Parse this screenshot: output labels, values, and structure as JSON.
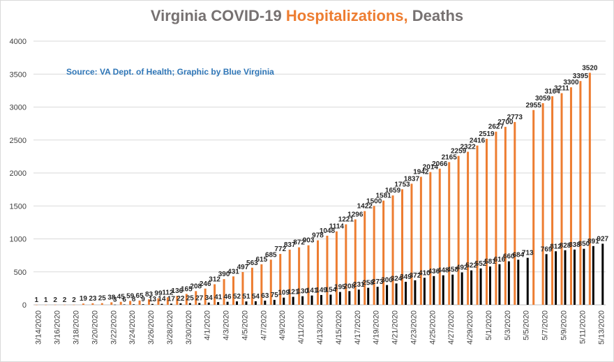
{
  "title": {
    "part1": "Virginia COVID-19 ",
    "part2": "Hospitalizations,",
    "part3": " Deaths"
  },
  "colors": {
    "title_grey": "#767171",
    "hospitalizations": "#ED7D31",
    "deaths": "#000000",
    "source_text": "#2E75B6",
    "grid": "#d9d9d9"
  },
  "chart_data": {
    "type": "bar",
    "title": "Virginia COVID-19 Hospitalizations, Deaths",
    "annotation": "Source: VA Dept. of Health; Graphic by Blue Virginia",
    "ylim": [
      0,
      4000
    ],
    "yticks": [
      0,
      500,
      1000,
      1500,
      2000,
      2500,
      3000,
      3500,
      4000
    ],
    "grid": true,
    "legend": "none",
    "categories": [
      "3/14/2020",
      "3/15/2020",
      "3/16/2020",
      "3/17/2020",
      "3/18/2020",
      "3/19/2020",
      "3/20/2020",
      "3/21/2020",
      "3/22/2020",
      "3/23/2020",
      "3/24/2020",
      "3/25/2020",
      "3/26/2020",
      "3/27/2020",
      "3/28/2020",
      "3/29/2020",
      "3/30/2020",
      "3/31/2020",
      "4/1/2020",
      "4/2/2020",
      "4/3/2020",
      "4/4/2020",
      "4/5/2020",
      "4/6/2020",
      "4/7/2020",
      "4/8/2020",
      "4/9/2020",
      "4/10/2020",
      "4/11/2020",
      "4/12/2020",
      "4/13/2020",
      "4/14/2020",
      "4/15/2020",
      "4/16/2020",
      "4/17/2020",
      "4/18/2020",
      "4/19/2020",
      "4/20/2020",
      "4/21/2020",
      "4/22/2020",
      "4/23/2020",
      "4/24/2020",
      "4/25/2020",
      "4/26/2020",
      "4/27/2020",
      "4/28/2020",
      "4/29/2020",
      "4/30/2020",
      "5/1/2020",
      "5/2/2020",
      "5/3/2020",
      "5/4/2020",
      "5/5/2020",
      "5/6/2020",
      "5/7/2020",
      "5/8/2020",
      "5/9/2020",
      "5/10/2020",
      "5/11/2020",
      "5/12/2020",
      "5/13/2020"
    ],
    "xtick_labels": [
      "3/14/2020",
      "3/16/2020",
      "3/18/2020",
      "3/20/2020",
      "3/22/2020",
      "3/24/2020",
      "3/26/2020",
      "3/28/2020",
      "3/30/2020",
      "4/1/2020",
      "4/3/2020",
      "4/5/2020",
      "4/7/2020",
      "4/9/2020",
      "4/11/2020",
      "4/13/2020",
      "4/15/2020",
      "4/17/2020",
      "4/19/2020",
      "4/21/2020",
      "4/23/2020",
      "4/25/2020",
      "4/27/2020",
      "4/29/2020",
      "5/1/2020",
      "5/3/2020",
      "5/5/2020",
      "5/7/2020",
      "5/9/2020",
      "5/11/2020",
      "5/13/2020"
    ],
    "series": [
      {
        "values": [
          1,
          1,
          2,
          2,
          2,
          19,
          23,
          25,
          38,
          45,
          59,
          65,
          83,
          99,
          112,
          136,
          165,
          208,
          246,
          312,
          390,
          431,
          497,
          563,
          615,
          685,
          772,
          837,
          872,
          903,
          978,
          1048,
          1114,
          1221,
          1296,
          1422,
          1500,
          1581,
          1659,
          1753,
          1837,
          1942,
          2014,
          2066,
          2165,
          2259,
          2322,
          2416,
          2519,
          2627,
          2700,
          2773,
          null,
          2955,
          3059,
          3164,
          3211,
          3300,
          3395,
          3520,
          null
        ],
        "data_labels": [
          "1",
          "1",
          "2",
          "2",
          "2",
          "19",
          "23",
          "25",
          "38",
          "45",
          "59",
          "65",
          "83",
          "99",
          "112",
          "136",
          "165",
          "208",
          "246",
          "312",
          "390",
          "431",
          "497",
          "563",
          "615",
          "685",
          "772",
          "837",
          "872",
          "903",
          "978",
          "1048",
          "1114",
          "1221",
          "1296",
          "1422",
          "1500",
          "1581",
          "1659",
          "1753",
          "1837",
          "1942",
          "2014",
          "2066",
          "2165",
          "2259",
          "2322",
          "2416",
          "2519",
          "2627",
          "2700",
          "2773",
          "",
          "2955",
          "3059",
          "3164",
          "3211",
          "3300",
          "3395",
          "3520",
          ""
        ]
      },
      {
        "values": [
          null,
          null,
          null,
          null,
          null,
          null,
          null,
          null,
          3,
          6,
          8,
          9,
          13,
          14,
          17,
          22,
          25,
          27,
          34,
          41,
          46,
          52,
          51,
          54,
          63,
          75,
          109,
          121,
          130,
          141,
          149,
          154,
          195,
          208,
          231,
          258,
          273,
          300,
          324,
          349,
          372,
          410,
          436,
          448,
          458,
          492,
          522,
          552,
          581,
          616,
          660,
          684,
          713,
          null,
          769,
          812,
          828,
          838,
          850,
          891,
          927
        ],
        "data_labels": [
          "",
          "",
          "",
          "",
          "",
          "",
          "",
          "",
          "3",
          "6",
          "8",
          "9",
          "13",
          "14",
          "17",
          "22",
          "25",
          "27",
          "34",
          "41",
          "46",
          "52",
          "51",
          "54",
          "63",
          "75",
          "109",
          "121",
          "130",
          "141",
          "149",
          "154",
          "195",
          "208",
          "231",
          "258",
          "273",
          "300",
          "324",
          "349",
          "372",
          "410",
          "436",
          "448",
          "458",
          "492",
          "522",
          "552",
          "581",
          "616",
          "660",
          "684",
          "713",
          "",
          "769",
          "812",
          "828",
          "838",
          "850",
          "891",
          "927"
        ]
      }
    ]
  }
}
